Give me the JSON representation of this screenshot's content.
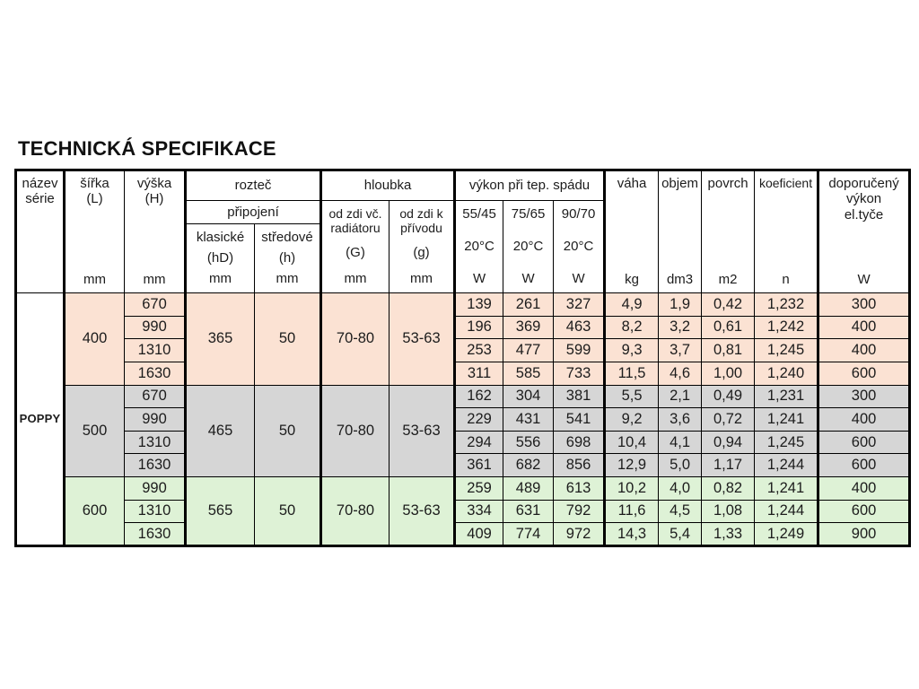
{
  "page": {
    "title": "TECHNICKÁ SPECIFIKACE"
  },
  "colors": {
    "border": "#000000",
    "group_400_bg": "#fbe2d3",
    "group_500_bg": "#d6d6d6",
    "group_600_bg": "#def2d6",
    "series_cell_bg": "#ffffff"
  },
  "table": {
    "header": {
      "nazev": {
        "label": "název\nsérie"
      },
      "sirka": {
        "label": "šířka\n(L)",
        "unit": "mm"
      },
      "vyska": {
        "label": "výška\n(H)",
        "unit": "mm"
      },
      "roztec": {
        "label": "rozteč",
        "sub": "připojení",
        "cols": [
          {
            "label": "klasické",
            "symbol": "(hD)",
            "unit": "mm"
          },
          {
            "label": "středové",
            "symbol": "(h)",
            "unit": "mm"
          }
        ]
      },
      "hloubka": {
        "label": "hloubka",
        "cols": [
          {
            "label": "od zdi vč.\nradiátoru",
            "symbol": "(G)",
            "unit": "mm"
          },
          {
            "label": "od zdi k\npřívodu",
            "symbol": "(g)",
            "unit": "mm"
          }
        ]
      },
      "vykon": {
        "label": "výkon při tep. spádu",
        "cols": [
          {
            "label": "55/45",
            "temp": "20°C",
            "unit": "W"
          },
          {
            "label": "75/65",
            "temp": "20°C",
            "unit": "W"
          },
          {
            "label": "90/70",
            "temp": "20°C",
            "unit": "W"
          }
        ]
      },
      "vaha": {
        "label": "váha",
        "unit": "kg"
      },
      "objem": {
        "label": "objem",
        "unit": "dm3"
      },
      "povrch": {
        "label": "povrch",
        "unit": "m2"
      },
      "koeficient": {
        "label": "koeficient",
        "unit": "n"
      },
      "doporuceny": {
        "label": "doporučený\nvýkon\nel.tyče",
        "unit": "W"
      }
    },
    "series_name": "POPPY",
    "groups": [
      {
        "sirka": "400",
        "bg_color": "#fbe2d3",
        "roztec_klasicke": "365",
        "roztec_stredove": "50",
        "hloubka_G": "70-80",
        "hloubka_g": "53-63",
        "rows": [
          {
            "vyska": "670",
            "w5545": "139",
            "w7565": "261",
            "w9070": "327",
            "vaha": "4,9",
            "objem": "1,9",
            "povrch": "0,42",
            "koeficient": "1,232",
            "doporuceny": "300"
          },
          {
            "vyska": "990",
            "w5545": "196",
            "w7565": "369",
            "w9070": "463",
            "vaha": "8,2",
            "objem": "3,2",
            "povrch": "0,61",
            "koeficient": "1,242",
            "doporuceny": "400"
          },
          {
            "vyska": "1310",
            "w5545": "253",
            "w7565": "477",
            "w9070": "599",
            "vaha": "9,3",
            "objem": "3,7",
            "povrch": "0,81",
            "koeficient": "1,245",
            "doporuceny": "400"
          },
          {
            "vyska": "1630",
            "w5545": "311",
            "w7565": "585",
            "w9070": "733",
            "vaha": "11,5",
            "objem": "4,6",
            "povrch": "1,00",
            "koeficient": "1,240",
            "doporuceny": "600"
          }
        ]
      },
      {
        "sirka": "500",
        "bg_color": "#d6d6d6",
        "roztec_klasicke": "465",
        "roztec_stredove": "50",
        "hloubka_G": "70-80",
        "hloubka_g": "53-63",
        "rows": [
          {
            "vyska": "670",
            "w5545": "162",
            "w7565": "304",
            "w9070": "381",
            "vaha": "5,5",
            "objem": "2,1",
            "povrch": "0,49",
            "koeficient": "1,231",
            "doporuceny": "300"
          },
          {
            "vyska": "990",
            "w5545": "229",
            "w7565": "431",
            "w9070": "541",
            "vaha": "9,2",
            "objem": "3,6",
            "povrch": "0,72",
            "koeficient": "1,241",
            "doporuceny": "400"
          },
          {
            "vyska": "1310",
            "w5545": "294",
            "w7565": "556",
            "w9070": "698",
            "vaha": "10,4",
            "objem": "4,1",
            "povrch": "0,94",
            "koeficient": "1,245",
            "doporuceny": "600"
          },
          {
            "vyska": "1630",
            "w5545": "361",
            "w7565": "682",
            "w9070": "856",
            "vaha": "12,9",
            "objem": "5,0",
            "povrch": "1,17",
            "koeficient": "1,244",
            "doporuceny": "600"
          }
        ]
      },
      {
        "sirka": "600",
        "bg_color": "#def2d6",
        "roztec_klasicke": "565",
        "roztec_stredove": "50",
        "hloubka_G": "70-80",
        "hloubka_g": "53-63",
        "rows": [
          {
            "vyska": "990",
            "w5545": "259",
            "w7565": "489",
            "w9070": "613",
            "vaha": "10,2",
            "objem": "4,0",
            "povrch": "0,82",
            "koeficient": "1,241",
            "doporuceny": "400"
          },
          {
            "vyska": "1310",
            "w5545": "334",
            "w7565": "631",
            "w9070": "792",
            "vaha": "11,6",
            "objem": "4,5",
            "povrch": "1,08",
            "koeficient": "1,244",
            "doporuceny": "600"
          },
          {
            "vyska": "1630",
            "w5545": "409",
            "w7565": "774",
            "w9070": "972",
            "vaha": "14,3",
            "objem": "5,4",
            "povrch": "1,33",
            "koeficient": "1,249",
            "doporuceny": "900"
          }
        ]
      }
    ]
  }
}
